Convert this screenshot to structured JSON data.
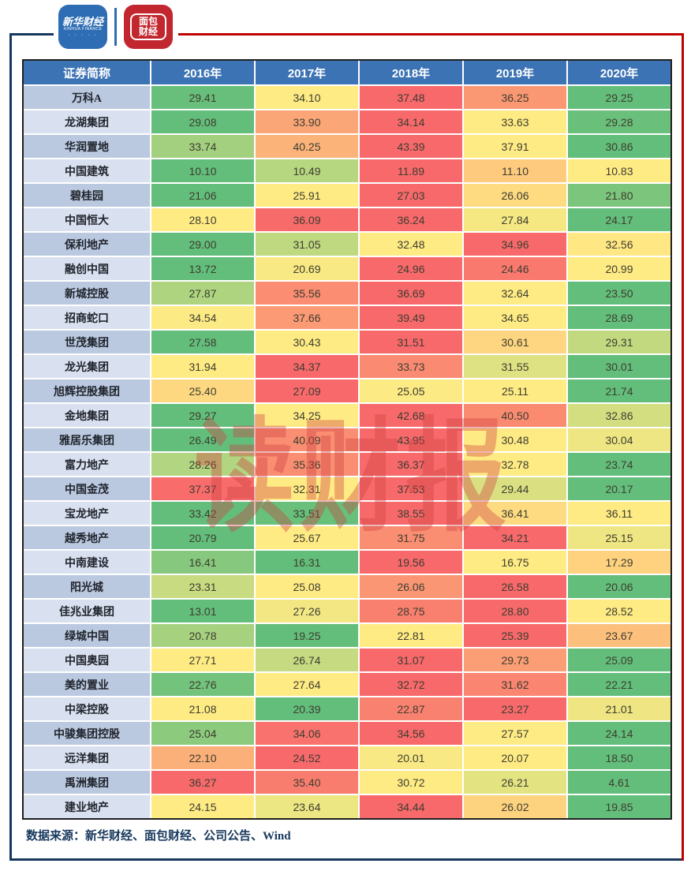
{
  "brand_header": {
    "xinhua_logo": {
      "title": "新华财经",
      "subtitle": "XINHUA FINANCE",
      "dots": "· · · · ·"
    },
    "mianbao_logo": {
      "title": "面包财经"
    }
  },
  "chart_data": {
    "type": "heatmap",
    "row_label_header": "证券简称",
    "columns": [
      "2016年",
      "2017年",
      "2018年",
      "2019年",
      "2020年"
    ],
    "rows": [
      {
        "name": "万科A",
        "values": [
          29.41,
          34.1,
          37.48,
          36.25,
          29.25
        ]
      },
      {
        "name": "龙湖集团",
        "values": [
          29.08,
          33.9,
          34.14,
          33.63,
          29.28
        ]
      },
      {
        "name": "华润置地",
        "values": [
          33.74,
          40.25,
          43.39,
          37.91,
          30.86
        ]
      },
      {
        "name": "中国建筑",
        "values": [
          10.1,
          10.49,
          11.89,
          11.1,
          10.83
        ]
      },
      {
        "name": "碧桂园",
        "values": [
          21.06,
          25.91,
          27.03,
          26.06,
          21.8
        ]
      },
      {
        "name": "中国恒大",
        "values": [
          28.1,
          36.09,
          36.24,
          27.84,
          24.17
        ]
      },
      {
        "name": "保利地产",
        "values": [
          29.0,
          31.05,
          32.48,
          34.96,
          32.56
        ]
      },
      {
        "name": "融创中国",
        "values": [
          13.72,
          20.69,
          24.96,
          24.46,
          20.99
        ]
      },
      {
        "name": "新城控股",
        "values": [
          27.87,
          35.56,
          36.69,
          32.64,
          23.5
        ]
      },
      {
        "name": "招商蛇口",
        "values": [
          34.54,
          37.66,
          39.49,
          34.65,
          28.69
        ]
      },
      {
        "name": "世茂集团",
        "values": [
          27.58,
          30.43,
          31.51,
          30.61,
          29.31
        ]
      },
      {
        "name": "龙光集团",
        "values": [
          31.94,
          34.37,
          33.73,
          31.55,
          30.01
        ]
      },
      {
        "name": "旭辉控股集团",
        "values": [
          25.4,
          27.09,
          25.05,
          25.11,
          21.74
        ]
      },
      {
        "name": "金地集团",
        "values": [
          29.27,
          34.25,
          42.68,
          40.5,
          32.86
        ]
      },
      {
        "name": "雅居乐集团",
        "values": [
          26.49,
          40.09,
          43.95,
          30.48,
          30.04
        ]
      },
      {
        "name": "富力地产",
        "values": [
          28.26,
          35.36,
          36.37,
          32.78,
          23.74
        ]
      },
      {
        "name": "中国金茂",
        "values": [
          37.37,
          32.31,
          37.53,
          29.44,
          20.17
        ]
      },
      {
        "name": "宝龙地产",
        "values": [
          33.42,
          33.51,
          38.55,
          36.41,
          36.11
        ]
      },
      {
        "name": "越秀地产",
        "values": [
          20.79,
          25.67,
          31.75,
          34.21,
          25.15
        ]
      },
      {
        "name": "中南建设",
        "values": [
          16.41,
          16.31,
          19.56,
          16.75,
          17.29
        ]
      },
      {
        "name": "阳光城",
        "values": [
          23.31,
          25.08,
          26.06,
          26.58,
          20.06
        ]
      },
      {
        "name": "佳兆业集团",
        "values": [
          13.01,
          27.26,
          28.75,
          28.8,
          28.52
        ]
      },
      {
        "name": "绿城中国",
        "values": [
          20.78,
          19.25,
          22.81,
          25.39,
          23.67
        ]
      },
      {
        "name": "中国奥园",
        "values": [
          27.71,
          26.74,
          31.07,
          29.73,
          25.09
        ]
      },
      {
        "name": "美的置业",
        "values": [
          22.76,
          27.64,
          32.72,
          31.62,
          22.21
        ]
      },
      {
        "name": "中梁控股",
        "values": [
          21.08,
          20.39,
          22.87,
          23.27,
          21.01
        ]
      },
      {
        "name": "中骏集团控股",
        "values": [
          25.04,
          34.06,
          34.56,
          27.57,
          24.14
        ]
      },
      {
        "name": "远洋集团",
        "values": [
          22.1,
          24.52,
          20.01,
          20.07,
          18.5
        ]
      },
      {
        "name": "禹洲集团",
        "values": [
          36.27,
          35.4,
          30.72,
          26.21,
          4.61
        ]
      },
      {
        "name": "建业地产",
        "values": [
          24.15,
          23.64,
          34.44,
          26.02,
          19.85
        ]
      }
    ],
    "color_scale": {
      "scope": "per-row",
      "midpoint": "median",
      "min_color": "#63BE7B",
      "mid_color": "#FFEB84",
      "max_color": "#F8696B"
    },
    "value_format": "0.00"
  },
  "watermark": {
    "text": "读财报",
    "color": "#D04040"
  },
  "footer": {
    "source_text": "数据来源：新华财经、面包财经、公司公告、Wind"
  },
  "theme": {
    "frame_blue": "#17375C",
    "frame_red": "#C00000",
    "header_bg": "#3C73B4",
    "label_row_dark": "#BAC9E0",
    "label_row_light": "#D9E0F0",
    "table_border": "#1F1F1F",
    "value_text": "#3D3D30"
  }
}
